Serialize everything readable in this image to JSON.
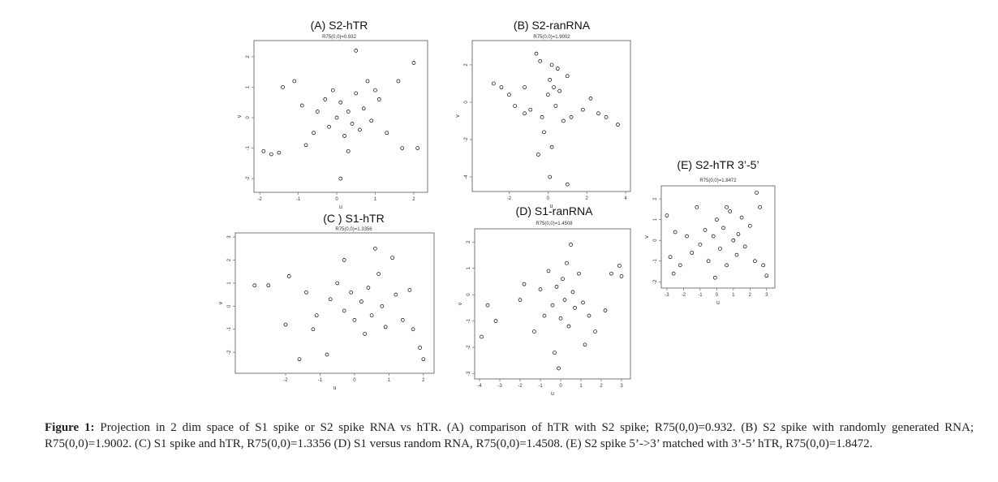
{
  "chart_data": [
    {
      "type": "scatter",
      "title": "(A) S2-hTR",
      "subtitle": "R75(0,0)=0.932",
      "xlabel": "u",
      "ylabel": "v",
      "color": "#000000",
      "xlim": [
        -2.15,
        2.36
      ],
      "ylim": [
        -2.45,
        2.53
      ],
      "xticks": [
        -2,
        -1,
        0,
        1,
        2
      ],
      "yticks": [
        -2,
        -1,
        0,
        1,
        2
      ],
      "x": [
        -1.9,
        -1.7,
        -1.5,
        -1.4,
        -1.1,
        -0.9,
        -0.6,
        -0.5,
        -0.3,
        -0.2,
        0,
        0.1,
        0.2,
        0.3,
        0.4,
        0.5,
        0.6,
        0.7,
        0.8,
        0.9,
        1.1,
        1.3,
        1.6,
        1.7,
        2.0,
        2.1,
        0.5,
        0.1,
        -0.8,
        -0.1,
        0.3,
        1.0
      ],
      "y": [
        -1.1,
        -1.2,
        -1.15,
        1.0,
        1.2,
        0.4,
        -0.5,
        0.2,
        0.6,
        -0.3,
        0,
        0.5,
        -0.6,
        0.2,
        -0.2,
        0.8,
        -0.4,
        0.3,
        1.2,
        -0.1,
        0.6,
        -0.5,
        1.2,
        -1.0,
        1.8,
        -1.0,
        2.2,
        -2.0,
        -0.9,
        0.9,
        -1.1,
        0.9
      ]
    },
    {
      "type": "scatter",
      "title": "(B) S2-ranRNA",
      "subtitle": "R75(0,0)=1.9002",
      "xlabel": "u",
      "ylabel": "v",
      "color": "#000000",
      "xlim": [
        -3.9,
        4.25
      ],
      "ylim": [
        -4.78,
        3.3
      ],
      "xticks": [
        -2,
        0,
        2,
        4
      ],
      "yticks": [
        -4,
        -2,
        0,
        2
      ],
      "x": [
        -2.8,
        -2.4,
        -2.0,
        -1.7,
        -1.2,
        -0.9,
        -0.6,
        -0.4,
        -0.3,
        -0.2,
        0,
        0.1,
        0.2,
        0.3,
        0.4,
        0.5,
        0.6,
        0.8,
        1.0,
        1.2,
        1.8,
        2.2,
        2.6,
        3.0,
        3.6,
        0.1,
        1.0,
        -0.5,
        0.2,
        -1.2
      ],
      "y": [
        1.0,
        0.8,
        0.4,
        -0.2,
        0.8,
        -0.4,
        2.6,
        2.2,
        -0.8,
        -1.6,
        0.4,
        1.2,
        -2.4,
        0.8,
        -0.2,
        1.8,
        0.6,
        -1.0,
        1.4,
        -0.8,
        -0.4,
        0.2,
        -0.6,
        -0.8,
        -1.2,
        -4.0,
        -4.4,
        -2.8,
        2.0,
        -0.6
      ]
    },
    {
      "type": "scatter",
      "title": "(C ) S1-hTR",
      "subtitle": "R75(0,0)=1.3356",
      "xlabel": "u",
      "ylabel": "v",
      "color": "#000000",
      "xlim": [
        -3.46,
        2.31
      ],
      "ylim": [
        -2.91,
        3.18
      ],
      "xticks": [
        -2,
        -1,
        0,
        1,
        2
      ],
      "yticks": [
        -2,
        -1,
        0,
        1,
        2,
        3
      ],
      "x": [
        -2.9,
        -2.5,
        -1.9,
        -1.6,
        -1.4,
        -1.1,
        -0.8,
        -0.7,
        -0.5,
        -0.3,
        -0.1,
        0,
        0.2,
        0.3,
        0.4,
        0.5,
        0.7,
        0.8,
        0.9,
        1.1,
        1.2,
        1.4,
        1.7,
        1.9,
        2.0,
        0.6,
        -0.3,
        -1.2,
        1.6,
        -2.0
      ],
      "y": [
        0.9,
        0.9,
        1.3,
        -2.3,
        0.6,
        -0.4,
        -2.1,
        0.3,
        1.0,
        -0.2,
        0.6,
        -0.6,
        0.2,
        -1.2,
        0.8,
        -0.4,
        1.4,
        0,
        -0.9,
        2.1,
        0.5,
        -0.6,
        -1.0,
        -1.8,
        -2.3,
        2.5,
        2.0,
        -1.0,
        0.7,
        -0.8
      ]
    },
    {
      "type": "scatter",
      "title": "(D) S1-ranRNA",
      "subtitle": "R75(0,0)=1.4508",
      "xlabel": "u",
      "ylabel": "v",
      "color": "#000000",
      "xlim": [
        -4.24,
        3.44
      ],
      "ylim": [
        -3.2,
        2.5
      ],
      "xticks": [
        -4,
        -3,
        -2,
        -1,
        0,
        1,
        2,
        3
      ],
      "yticks": [
        -3,
        -2,
        -1,
        0,
        1,
        2
      ],
      "x": [
        -3.9,
        -3.6,
        -3.2,
        -2.0,
        -1.8,
        -1.3,
        -1.0,
        -0.8,
        -0.6,
        -0.4,
        -0.2,
        0,
        0.1,
        0.2,
        0.3,
        0.4,
        0.6,
        0.7,
        0.9,
        1.1,
        1.4,
        1.7,
        2.2,
        2.5,
        2.9,
        3.0,
        -0.3,
        -0.1,
        0.5,
        1.2
      ],
      "y": [
        -1.6,
        -0.4,
        -1.0,
        -0.2,
        0.4,
        -1.4,
        0.2,
        -0.8,
        0.9,
        -0.4,
        0.3,
        -0.9,
        0.6,
        -0.2,
        1.2,
        -1.2,
        0.1,
        -0.5,
        0.8,
        -0.3,
        -0.8,
        -1.4,
        -0.6,
        0.8,
        1.1,
        0.7,
        -2.2,
        -2.8,
        1.9,
        -1.9
      ]
    },
    {
      "type": "scatter",
      "title": "(E) S2-hTR 3’-5’",
      "subtitle": "R75(0,0)=1.8472",
      "xlabel": "u",
      "ylabel": "v",
      "color": "#000000",
      "xlim": [
        -3.34,
        3.5
      ],
      "ylim": [
        -2.3,
        2.63
      ],
      "xticks": [
        -3,
        -2,
        -1,
        0,
        1,
        2,
        3
      ],
      "yticks": [
        -2,
        -1,
        0,
        1,
        2
      ],
      "x": [
        -3.0,
        -2.8,
        -2.5,
        -2.2,
        -1.8,
        -1.5,
        -1.2,
        -1.0,
        -0.7,
        -0.5,
        -0.2,
        0,
        0.2,
        0.4,
        0.6,
        0.8,
        1.0,
        1.2,
        1.5,
        1.7,
        2.0,
        2.3,
        2.6,
        2.8,
        3.0,
        2.4,
        -0.1,
        0.6,
        -2.6,
        1.3
      ],
      "y": [
        1.2,
        -0.8,
        0.4,
        -1.2,
        0.2,
        -0.6,
        1.6,
        -0.2,
        0.5,
        -1.0,
        0.2,
        1.0,
        -0.4,
        0.6,
        -1.2,
        1.4,
        0,
        -0.7,
        1.1,
        -0.3,
        0.7,
        -1.0,
        1.6,
        -1.2,
        -1.7,
        2.3,
        -1.8,
        1.6,
        -1.6,
        0.3
      ]
    }
  ],
  "caption": {
    "label": "Figure 1:",
    "text": "Projection in 2 dim space of S1 spike or S2 spike RNA vs hTR. (A) comparison of hTR with S2 spike; R75(0,0)=0.932. (B) S2 spike with randomly generated RNA; R75(0,0)=1.9002. (C) S1 spike and hTR, R75(0,0)=1.3356 (D) S1 versus random RNA, R75(0,0)=1.4508. (E) S2 spike 5’->3’ matched with 3’-5’ hTR, R75(0,0)=1.8472."
  }
}
